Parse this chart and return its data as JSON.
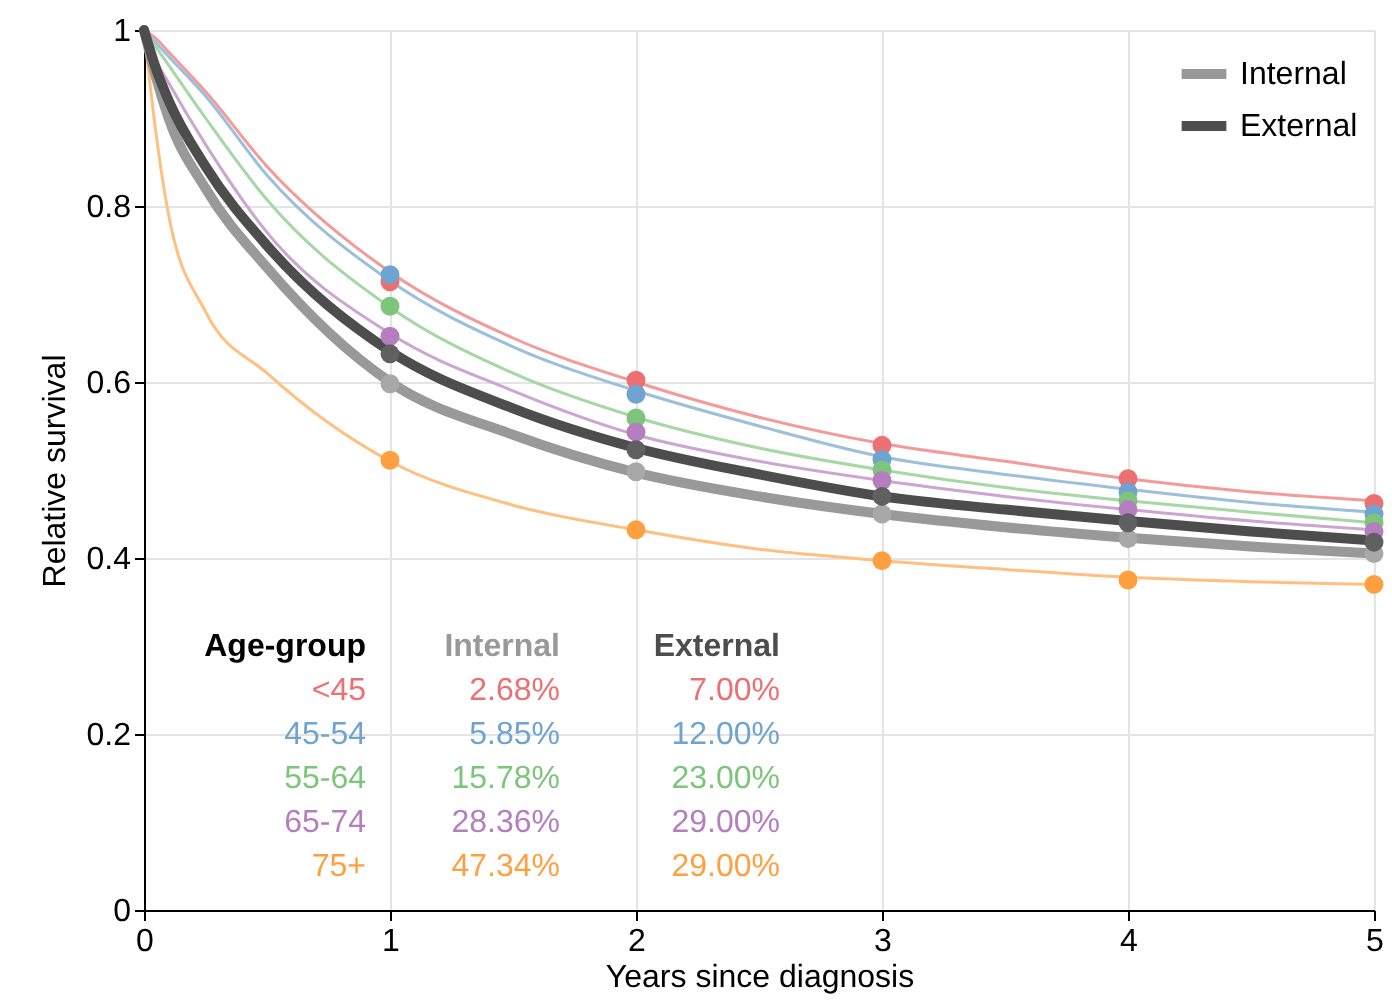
{
  "chart_data": {
    "type": "line",
    "xlabel": "Years since diagnosis",
    "ylabel": "Relative survival",
    "xlim": [
      0,
      5
    ],
    "ylim": [
      0,
      1
    ],
    "xticks": [
      0,
      1,
      2,
      3,
      4,
      5
    ],
    "yticks": [
      0,
      0.2,
      0.4,
      0.6,
      0.8,
      1
    ],
    "grid": true,
    "legend": "top right",
    "series": [
      {
        "color": "#f39a9b",
        "x": [
          0,
          0.05,
          0.1,
          0.25,
          0.5,
          1,
          1.5,
          2,
          2.5,
          3,
          3.5,
          4,
          4.5,
          5
        ],
        "values": [
          1,
          0.99,
          0.975,
          0.93,
          0.845,
          0.725,
          0.65,
          0.6,
          0.56,
          0.53,
          0.51,
          0.49,
          0.475,
          0.465
        ]
      },
      {
        "color": "#9bbfdc",
        "x": [
          0,
          0.05,
          0.1,
          0.25,
          0.5,
          1,
          1.5,
          2,
          2.5,
          3,
          3.5,
          4,
          4.5,
          5
        ],
        "values": [
          1,
          0.985,
          0.97,
          0.925,
          0.835,
          0.715,
          0.64,
          0.59,
          0.55,
          0.515,
          0.495,
          0.478,
          0.463,
          0.452
        ]
      },
      {
        "color": "#a6d7a4",
        "x": [
          0,
          0.05,
          0.1,
          0.25,
          0.5,
          1,
          1.5,
          2,
          2.5,
          3,
          3.5,
          4,
          4.5,
          5
        ],
        "values": [
          1,
          0.98,
          0.96,
          0.9,
          0.807,
          0.685,
          0.61,
          0.56,
          0.525,
          0.5,
          0.48,
          0.465,
          0.452,
          0.44
        ]
      },
      {
        "color": "#cba6d1",
        "x": [
          0,
          0.05,
          0.1,
          0.25,
          0.5,
          1,
          1.5,
          2,
          2.5,
          3,
          3.5,
          4,
          4.5,
          5
        ],
        "values": [
          1,
          0.965,
          0.94,
          0.87,
          0.77,
          0.655,
          0.59,
          0.54,
          0.51,
          0.488,
          0.47,
          0.455,
          0.442,
          0.432
        ]
      },
      {
        "color": "#ffbf80",
        "x": [
          0,
          0.05,
          0.1,
          0.25,
          0.5,
          1,
          1.5,
          2,
          2.5,
          3,
          3.5,
          4,
          4.5,
          5
        ],
        "values": [
          1,
          0.88,
          0.79,
          0.68,
          0.61,
          0.51,
          0.46,
          0.432,
          0.41,
          0.397,
          0.387,
          0.378,
          0.373,
          0.37
        ]
      },
      {
        "name": "Internal",
        "color": "#999999",
        "x": [
          0,
          0.05,
          0.1,
          0.25,
          0.5,
          1,
          1.5,
          2,
          2.5,
          3,
          3.5,
          4,
          4.5,
          5
        ],
        "values": [
          1,
          0.945,
          0.9,
          0.82,
          0.73,
          0.6,
          0.54,
          0.497,
          0.47,
          0.45,
          0.435,
          0.423,
          0.413,
          0.405
        ]
      },
      {
        "name": "External",
        "color": "#4d4d4d",
        "x": [
          0,
          0.05,
          0.1,
          0.25,
          0.5,
          1,
          1.5,
          2,
          2.5,
          3,
          3.5,
          4,
          4.5,
          5
        ],
        "values": [
          1,
          0.955,
          0.92,
          0.845,
          0.755,
          0.635,
          0.57,
          0.525,
          0.495,
          0.47,
          0.455,
          0.442,
          0.43,
          0.42
        ]
      },
      {
        "type": "scatter",
        "color": "#ec7072",
        "x": [
          1,
          2,
          3,
          4,
          5
        ],
        "values": [
          0.714,
          0.602,
          0.528,
          0.49,
          0.462
        ]
      },
      {
        "type": "scatter",
        "color": "#6fa3d0",
        "x": [
          1,
          2,
          3,
          4,
          5
        ],
        "values": [
          0.722,
          0.586,
          0.512,
          0.475,
          0.45
        ]
      },
      {
        "type": "scatter",
        "color": "#7dc57b",
        "x": [
          1,
          2,
          3,
          4,
          5
        ],
        "values": [
          0.686,
          0.559,
          0.5,
          0.465,
          0.44
        ]
      },
      {
        "type": "scatter",
        "color": "#b57ebf",
        "x": [
          1,
          2,
          3,
          4,
          5
        ],
        "values": [
          0.652,
          0.543,
          0.488,
          0.455,
          0.43
        ]
      },
      {
        "type": "scatter",
        "color": "#ffa040",
        "x": [
          1,
          2,
          3,
          4,
          5
        ],
        "values": [
          0.511,
          0.432,
          0.397,
          0.375,
          0.37
        ]
      },
      {
        "type": "scatter",
        "color": "#a8a8a8",
        "x": [
          1,
          2,
          3,
          4,
          5
        ],
        "values": [
          0.598,
          0.498,
          0.45,
          0.422,
          0.405
        ]
      },
      {
        "type": "scatter",
        "color": "#606060",
        "x": [
          1,
          2,
          3,
          4,
          5
        ],
        "values": [
          0.632,
          0.523,
          0.47,
          0.44,
          0.418
        ]
      }
    ],
    "annotations": [
      "Age-group",
      "Internal",
      "External",
      "<45",
      "2.68%",
      "7.00%",
      "45-54",
      "5.85%",
      "12.00%",
      "55-64",
      "15.78%",
      "23.00%",
      "65-74",
      "28.36%",
      "29.00%",
      "75+",
      "47.34%",
      "29.00%"
    ]
  }
}
